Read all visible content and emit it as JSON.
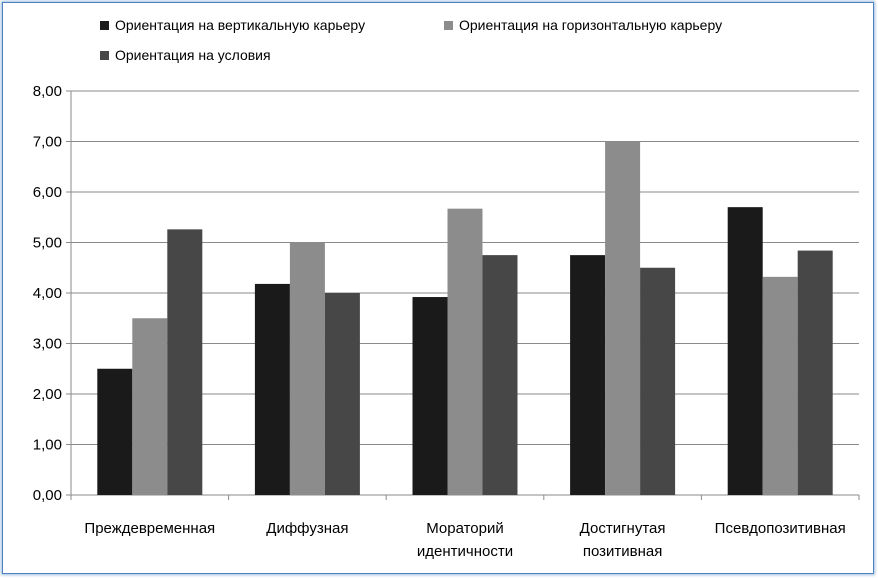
{
  "chart_data": {
    "type": "bar",
    "categories": [
      [
        "Преждевременная"
      ],
      [
        "Диффузная"
      ],
      [
        "Мораторий",
        "идентичности"
      ],
      [
        "Достигнутая",
        "позитивная"
      ],
      [
        "Псевдопозитивная"
      ]
    ],
    "series": [
      {
        "name": "Ориентация на вертикальную карьеру",
        "color": "#1a1a1a",
        "values": [
          2.5,
          4.18,
          3.92,
          4.75,
          5.7
        ]
      },
      {
        "name": "Ориентация на горизонтальную карьеру",
        "color": "#8c8c8c",
        "values": [
          3.5,
          5.0,
          5.67,
          7.0,
          4.32
        ]
      },
      {
        "name": "Ориентация на условия",
        "color": "#474747",
        "values": [
          5.26,
          4.0,
          4.75,
          4.5,
          4.84
        ]
      }
    ],
    "ylim": [
      0,
      8
    ],
    "yticks": [
      "0,00",
      "1,00",
      "2,00",
      "3,00",
      "4,00",
      "5,00",
      "6,00",
      "7,00",
      "8,00"
    ],
    "grid": true,
    "legend_position": "top"
  }
}
